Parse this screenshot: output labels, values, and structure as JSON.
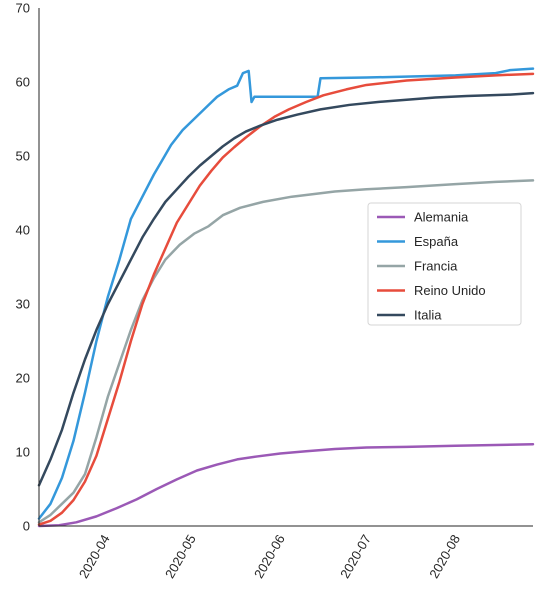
{
  "chart_data": {
    "type": "line",
    "title": "",
    "xlabel": "",
    "ylabel": "",
    "x_domain": [
      "2020-03-09",
      "2020-08-28"
    ],
    "ylim": [
      0,
      70
    ],
    "y_ticks": [
      "0",
      "10",
      "20",
      "30",
      "40",
      "50",
      "60",
      "70"
    ],
    "x_ticks": [
      {
        "date": "2020-04-01",
        "label": "2020-04"
      },
      {
        "date": "2020-05-01",
        "label": "2020-05"
      },
      {
        "date": "2020-06-01",
        "label": "2020-06"
      },
      {
        "date": "2020-07-01",
        "label": "2020-07"
      },
      {
        "date": "2020-08-01",
        "label": "2020-08"
      }
    ],
    "grid": false,
    "legend_position": "center-right",
    "series": [
      {
        "name": "Alemania",
        "color": "#9b59b6",
        "points": [
          [
            "2020-03-09",
            0.0
          ],
          [
            "2020-03-16",
            0.1
          ],
          [
            "2020-03-22",
            0.5
          ],
          [
            "2020-03-29",
            1.3
          ],
          [
            "2020-04-05",
            2.4
          ],
          [
            "2020-04-12",
            3.6
          ],
          [
            "2020-04-19",
            5.0
          ],
          [
            "2020-04-26",
            6.3
          ],
          [
            "2020-05-03",
            7.5
          ],
          [
            "2020-05-10",
            8.3
          ],
          [
            "2020-05-17",
            9.0
          ],
          [
            "2020-05-24",
            9.4
          ],
          [
            "2020-06-01",
            9.8
          ],
          [
            "2020-06-10",
            10.1
          ],
          [
            "2020-06-20",
            10.4
          ],
          [
            "2020-07-01",
            10.6
          ],
          [
            "2020-07-15",
            10.7
          ],
          [
            "2020-08-01",
            10.85
          ],
          [
            "2020-08-15",
            10.95
          ],
          [
            "2020-08-28",
            11.05
          ]
        ]
      },
      {
        "name": "España",
        "color": "#3498db",
        "points": [
          [
            "2020-03-09",
            1.0
          ],
          [
            "2020-03-13",
            3.0
          ],
          [
            "2020-03-17",
            6.5
          ],
          [
            "2020-03-21",
            11.5
          ],
          [
            "2020-03-25",
            18.0
          ],
          [
            "2020-03-29",
            25.0
          ],
          [
            "2020-04-02",
            31.0
          ],
          [
            "2020-04-06",
            36.0
          ],
          [
            "2020-04-10",
            41.5
          ],
          [
            "2020-04-14",
            44.5
          ],
          [
            "2020-04-18",
            47.5
          ],
          [
            "2020-04-21",
            49.5
          ],
          [
            "2020-04-24",
            51.5
          ],
          [
            "2020-04-28",
            53.5
          ],
          [
            "2020-05-02",
            55.0
          ],
          [
            "2020-05-06",
            56.5
          ],
          [
            "2020-05-10",
            58.0
          ],
          [
            "2020-05-14",
            59.0
          ],
          [
            "2020-05-17",
            59.5
          ],
          [
            "2020-05-19",
            61.2
          ],
          [
            "2020-05-21",
            61.5
          ],
          [
            "2020-05-22",
            57.3
          ],
          [
            "2020-05-23",
            58.0
          ],
          [
            "2020-06-14",
            58.0
          ],
          [
            "2020-06-15",
            60.5
          ],
          [
            "2020-07-01",
            60.6
          ],
          [
            "2020-08-01",
            60.9
          ],
          [
            "2020-08-15",
            61.2
          ],
          [
            "2020-08-20",
            61.6
          ],
          [
            "2020-08-28",
            61.8
          ]
        ]
      },
      {
        "name": "Francia",
        "color": "#95a5a6",
        "points": [
          [
            "2020-03-09",
            0.5
          ],
          [
            "2020-03-13",
            1.5
          ],
          [
            "2020-03-17",
            3.0
          ],
          [
            "2020-03-21",
            4.5
          ],
          [
            "2020-03-25",
            7.0
          ],
          [
            "2020-03-29",
            12.0
          ],
          [
            "2020-04-02",
            17.5
          ],
          [
            "2020-04-06",
            22.0
          ],
          [
            "2020-04-10",
            26.5
          ],
          [
            "2020-04-14",
            30.5
          ],
          [
            "2020-04-18",
            33.5
          ],
          [
            "2020-04-22",
            36.0
          ],
          [
            "2020-04-27",
            38.0
          ],
          [
            "2020-05-02",
            39.5
          ],
          [
            "2020-05-07",
            40.5
          ],
          [
            "2020-05-12",
            42.0
          ],
          [
            "2020-05-18",
            43.0
          ],
          [
            "2020-05-26",
            43.8
          ],
          [
            "2020-06-05",
            44.5
          ],
          [
            "2020-06-20",
            45.2
          ],
          [
            "2020-07-01",
            45.5
          ],
          [
            "2020-07-15",
            45.8
          ],
          [
            "2020-08-01",
            46.2
          ],
          [
            "2020-08-15",
            46.5
          ],
          [
            "2020-08-28",
            46.7
          ]
        ]
      },
      {
        "name": "Reino Unido",
        "color": "#e74c3c",
        "points": [
          [
            "2020-03-09",
            0.2
          ],
          [
            "2020-03-13",
            0.7
          ],
          [
            "2020-03-17",
            1.8
          ],
          [
            "2020-03-21",
            3.5
          ],
          [
            "2020-03-25",
            6.0
          ],
          [
            "2020-03-29",
            9.5
          ],
          [
            "2020-04-02",
            14.5
          ],
          [
            "2020-04-06",
            19.5
          ],
          [
            "2020-04-10",
            25.0
          ],
          [
            "2020-04-14",
            30.0
          ],
          [
            "2020-04-18",
            34.0
          ],
          [
            "2020-04-22",
            37.5
          ],
          [
            "2020-04-26",
            41.0
          ],
          [
            "2020-04-30",
            43.5
          ],
          [
            "2020-05-04",
            46.0
          ],
          [
            "2020-05-08",
            48.0
          ],
          [
            "2020-05-12",
            49.8
          ],
          [
            "2020-05-16",
            51.2
          ],
          [
            "2020-05-20",
            52.5
          ],
          [
            "2020-05-25",
            54.0
          ],
          [
            "2020-05-30",
            55.3
          ],
          [
            "2020-06-04",
            56.3
          ],
          [
            "2020-06-10",
            57.3
          ],
          [
            "2020-06-16",
            58.2
          ],
          [
            "2020-06-24",
            59.0
          ],
          [
            "2020-07-01",
            59.6
          ],
          [
            "2020-07-15",
            60.2
          ],
          [
            "2020-08-01",
            60.6
          ],
          [
            "2020-08-15",
            60.9
          ],
          [
            "2020-08-28",
            61.1
          ]
        ]
      },
      {
        "name": "Italia",
        "color": "#34495e",
        "points": [
          [
            "2020-03-09",
            5.5
          ],
          [
            "2020-03-13",
            9.0
          ],
          [
            "2020-03-17",
            13.0
          ],
          [
            "2020-03-21",
            18.0
          ],
          [
            "2020-03-25",
            22.5
          ],
          [
            "2020-03-29",
            26.5
          ],
          [
            "2020-04-02",
            30.0
          ],
          [
            "2020-04-06",
            33.0
          ],
          [
            "2020-04-10",
            36.0
          ],
          [
            "2020-04-14",
            39.0
          ],
          [
            "2020-04-18",
            41.5
          ],
          [
            "2020-04-22",
            43.8
          ],
          [
            "2020-04-26",
            45.5
          ],
          [
            "2020-04-30",
            47.2
          ],
          [
            "2020-05-04",
            48.7
          ],
          [
            "2020-05-08",
            50.0
          ],
          [
            "2020-05-12",
            51.3
          ],
          [
            "2020-05-16",
            52.4
          ],
          [
            "2020-05-20",
            53.3
          ],
          [
            "2020-05-25",
            54.1
          ],
          [
            "2020-05-31",
            54.9
          ],
          [
            "2020-06-07",
            55.6
          ],
          [
            "2020-06-15",
            56.3
          ],
          [
            "2020-06-25",
            56.9
          ],
          [
            "2020-07-05",
            57.3
          ],
          [
            "2020-07-15",
            57.6
          ],
          [
            "2020-07-25",
            57.9
          ],
          [
            "2020-08-05",
            58.1
          ],
          [
            "2020-08-20",
            58.3
          ],
          [
            "2020-08-28",
            58.5
          ]
        ]
      }
    ]
  }
}
